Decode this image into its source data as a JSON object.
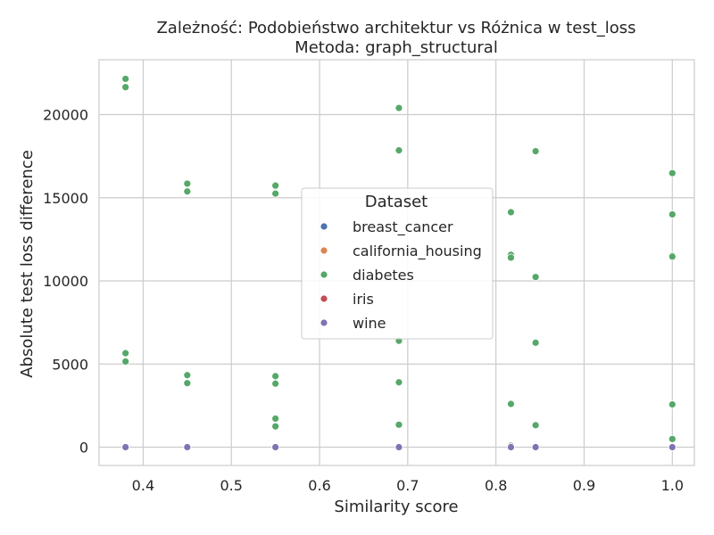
{
  "chart_data": {
    "type": "scatter",
    "title": "Zależność: Podobieństwo architektur vs Różnica w test_loss",
    "subtitle": "Metoda: graph_structural",
    "xlabel": "Similarity score",
    "ylabel": "Absolute test loss difference",
    "xlim": [
      0.35,
      1.025
    ],
    "ylim": [
      -1100,
      23300
    ],
    "xticks": [
      0.4,
      0.5,
      0.6,
      0.7,
      0.8,
      0.9,
      1.0
    ],
    "xtick_labels": [
      "0.4",
      "0.5",
      "0.6",
      "0.7",
      "0.8",
      "0.9",
      "1.0"
    ],
    "yticks": [
      0,
      5000,
      10000,
      15000,
      20000
    ],
    "ytick_labels": [
      "0",
      "5000",
      "10000",
      "15000",
      "20000"
    ],
    "grid": true,
    "legend": {
      "title": "Dataset",
      "placement": "center"
    },
    "series": [
      {
        "name": "breast_cancer",
        "color": "#4c72b0",
        "points": [
          [
            0.38,
            0
          ],
          [
            0.45,
            0
          ],
          [
            0.55,
            0
          ],
          [
            0.69,
            0
          ],
          [
            0.817,
            0
          ],
          [
            0.845,
            0
          ],
          [
            1.0,
            0
          ]
        ]
      },
      {
        "name": "california_housing",
        "color": "#dd8452",
        "points": [
          [
            0.38,
            0
          ],
          [
            0.45,
            0
          ],
          [
            0.55,
            0
          ],
          [
            0.69,
            0
          ],
          [
            0.817,
            0
          ],
          [
            0.845,
            0
          ],
          [
            1.0,
            0
          ]
        ]
      },
      {
        "name": "diabetes",
        "color": "#55a868",
        "points": [
          [
            0.38,
            22150
          ],
          [
            0.38,
            21650
          ],
          [
            0.38,
            5650
          ],
          [
            0.38,
            5150
          ],
          [
            0.45,
            15850
          ],
          [
            0.45,
            15380
          ],
          [
            0.45,
            4330
          ],
          [
            0.45,
            3850
          ],
          [
            0.55,
            15730
          ],
          [
            0.55,
            15250
          ],
          [
            0.55,
            4270
          ],
          [
            0.55,
            3820
          ],
          [
            0.55,
            1720
          ],
          [
            0.55,
            1250
          ],
          [
            0.69,
            20400
          ],
          [
            0.69,
            17850
          ],
          [
            0.69,
            6400
          ],
          [
            0.69,
            3900
          ],
          [
            0.69,
            1350
          ],
          [
            0.817,
            14130
          ],
          [
            0.817,
            11570
          ],
          [
            0.817,
            11400
          ],
          [
            0.817,
            2600
          ],
          [
            0.817,
            80
          ],
          [
            0.845,
            17800
          ],
          [
            0.845,
            10230
          ],
          [
            0.845,
            6280
          ],
          [
            0.845,
            1320
          ],
          [
            1.0,
            16480
          ],
          [
            1.0,
            14000
          ],
          [
            1.0,
            11520
          ],
          [
            1.0,
            11460
          ],
          [
            1.0,
            2570
          ],
          [
            1.0,
            490
          ]
        ]
      },
      {
        "name": "iris",
        "color": "#c44e52",
        "points": [
          [
            0.38,
            0
          ],
          [
            0.45,
            0
          ],
          [
            0.55,
            0
          ],
          [
            0.69,
            0
          ],
          [
            0.817,
            0
          ],
          [
            0.845,
            0
          ],
          [
            1.0,
            0
          ]
        ]
      },
      {
        "name": "wine",
        "color": "#8172b3",
        "points": [
          [
            0.38,
            0
          ],
          [
            0.45,
            0
          ],
          [
            0.55,
            0
          ],
          [
            0.69,
            0
          ],
          [
            0.817,
            0
          ],
          [
            0.845,
            0
          ],
          [
            1.0,
            0
          ]
        ]
      }
    ]
  }
}
